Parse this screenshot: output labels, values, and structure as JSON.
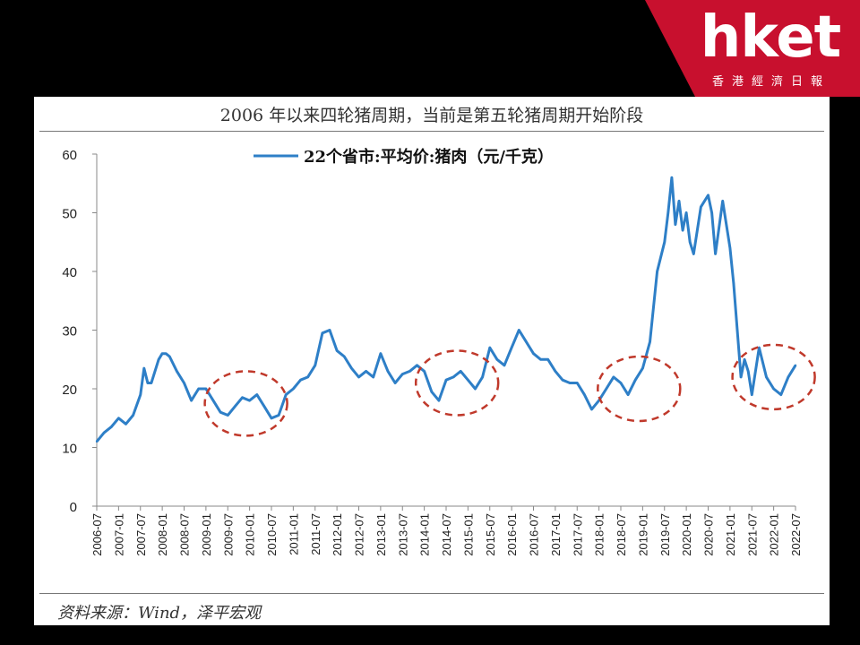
{
  "brand": {
    "logo_text": "hket",
    "logo_subtitle": "香港經濟日報",
    "color": "#c8102e"
  },
  "figure": {
    "title": "2006 年以来四轮猪周期，当前是第五轮猪周期开始阶段",
    "source": "资料来源：Wind，泽平宏观"
  },
  "chart_data": {
    "type": "line",
    "title": "2006 年以来四轮猪周期，当前是第五轮猪周期开始阶段",
    "xlabel": "",
    "ylabel": "",
    "ylim": [
      0,
      60
    ],
    "y_ticks": [
      0,
      10,
      20,
      30,
      40,
      50,
      60
    ],
    "x_ticks": [
      "2006-07",
      "2007-01",
      "2007-07",
      "2008-01",
      "2008-07",
      "2009-01",
      "2009-07",
      "2010-01",
      "2010-07",
      "2011-01",
      "2011-07",
      "2012-01",
      "2012-07",
      "2013-01",
      "2013-07",
      "2014-01",
      "2014-07",
      "2015-01",
      "2015-07",
      "2016-01",
      "2016-07",
      "2017-01",
      "2017-07",
      "2018-01",
      "2018-07",
      "2019-01",
      "2019-07",
      "2020-01",
      "2020-07",
      "2021-01",
      "2021-07",
      "2022-01",
      "2022-07"
    ],
    "grid": false,
    "legend": "top-center",
    "series": [
      {
        "name": "22个省市:平均价:猪肉（元/千克）",
        "color": "#2e7fc7",
        "x": [
          "2006-07",
          "2006-09",
          "2006-11",
          "2007-01",
          "2007-03",
          "2007-05",
          "2007-07",
          "2007-08",
          "2007-09",
          "2007-10",
          "2007-11",
          "2007-12",
          "2008-01",
          "2008-02",
          "2008-03",
          "2008-05",
          "2008-07",
          "2008-09",
          "2008-11",
          "2009-01",
          "2009-03",
          "2009-05",
          "2009-07",
          "2009-09",
          "2009-11",
          "2010-01",
          "2010-03",
          "2010-05",
          "2010-07",
          "2010-09",
          "2010-11",
          "2011-01",
          "2011-03",
          "2011-05",
          "2011-07",
          "2011-09",
          "2011-11",
          "2012-01",
          "2012-03",
          "2012-05",
          "2012-07",
          "2012-09",
          "2012-11",
          "2013-01",
          "2013-03",
          "2013-05",
          "2013-07",
          "2013-09",
          "2013-11",
          "2014-01",
          "2014-03",
          "2014-05",
          "2014-07",
          "2014-09",
          "2014-11",
          "2015-01",
          "2015-03",
          "2015-05",
          "2015-07",
          "2015-09",
          "2015-11",
          "2016-01",
          "2016-03",
          "2016-05",
          "2016-07",
          "2016-09",
          "2016-11",
          "2017-01",
          "2017-03",
          "2017-05",
          "2017-07",
          "2017-09",
          "2017-11",
          "2018-01",
          "2018-03",
          "2018-05",
          "2018-07",
          "2018-09",
          "2018-11",
          "2019-01",
          "2019-03",
          "2019-05",
          "2019-07",
          "2019-08",
          "2019-09",
          "2019-10",
          "2019-11",
          "2019-12",
          "2020-01",
          "2020-02",
          "2020-03",
          "2020-05",
          "2020-07",
          "2020-08",
          "2020-09",
          "2020-11",
          "2021-01",
          "2021-02",
          "2021-03",
          "2021-04",
          "2021-05",
          "2021-06",
          "2021-07",
          "2021-09",
          "2021-11",
          "2022-01",
          "2022-03",
          "2022-05",
          "2022-07"
        ],
        "values": [
          11,
          12.5,
          13.5,
          15,
          14,
          15.5,
          19,
          23.5,
          21,
          21,
          23,
          25,
          26,
          26,
          25.5,
          23,
          21,
          18,
          20,
          20,
          18,
          16,
          15.5,
          17,
          18.5,
          18,
          19,
          17,
          15,
          15.5,
          19,
          20,
          21.5,
          22,
          24,
          29.5,
          30,
          26.5,
          25.5,
          23.5,
          22,
          23,
          22,
          26,
          23,
          21,
          22.5,
          23,
          24,
          23,
          19.5,
          18,
          21.5,
          22,
          23,
          21.5,
          20,
          22,
          27,
          25,
          24,
          27,
          30,
          28,
          26,
          25,
          25,
          23,
          21.5,
          21,
          21,
          19,
          16.5,
          18,
          20,
          22,
          21,
          19,
          21.5,
          23.5,
          28,
          40,
          45,
          50,
          56,
          48,
          52,
          47,
          50,
          45,
          43,
          51,
          53,
          50,
          43,
          52,
          44,
          38,
          30,
          22,
          25,
          23,
          19,
          27,
          22,
          20,
          19,
          22,
          24
        ]
      }
    ],
    "annotations": [
      {
        "type": "ellipse",
        "color": "#c0392b",
        "center_x": "2009-12",
        "center_y": 17.5
      },
      {
        "type": "ellipse",
        "color": "#c0392b",
        "center_x": "2014-10",
        "center_y": 21
      },
      {
        "type": "ellipse",
        "color": "#c0392b",
        "center_x": "2018-12",
        "center_y": 20
      },
      {
        "type": "ellipse",
        "color": "#c0392b",
        "center_x": "2022-01",
        "center_y": 22
      }
    ]
  }
}
